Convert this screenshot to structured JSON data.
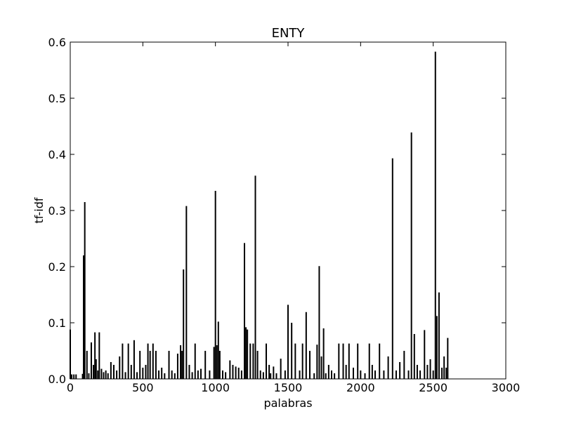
{
  "chart_data": {
    "type": "bar",
    "title": "ENTY",
    "xlabel": "palabras",
    "ylabel": "tf-idf",
    "xlim": [
      0,
      3000
    ],
    "ylim": [
      0.0,
      0.6
    ],
    "xticks": [
      "0",
      "500",
      "1000",
      "1500",
      "2000",
      "2500",
      "3000"
    ],
    "yticks": [
      "0.0",
      "0.1",
      "0.2",
      "0.3",
      "0.4",
      "0.5",
      "0.6"
    ],
    "grid": false,
    "bar_color": "#000000",
    "x": [
      0,
      10,
      25,
      40,
      85,
      92,
      100,
      115,
      128,
      145,
      160,
      170,
      178,
      190,
      200,
      215,
      230,
      245,
      260,
      280,
      300,
      320,
      340,
      360,
      380,
      400,
      420,
      440,
      460,
      480,
      500,
      520,
      535,
      550,
      570,
      590,
      610,
      630,
      650,
      680,
      700,
      720,
      740,
      760,
      770,
      780,
      800,
      820,
      840,
      860,
      880,
      900,
      930,
      960,
      990,
      1000,
      1010,
      1020,
      1030,
      1050,
      1070,
      1100,
      1120,
      1140,
      1160,
      1180,
      1200,
      1210,
      1220,
      1240,
      1260,
      1275,
      1290,
      1310,
      1330,
      1350,
      1370,
      1380,
      1400,
      1420,
      1450,
      1480,
      1500,
      1525,
      1550,
      1580,
      1600,
      1625,
      1650,
      1680,
      1700,
      1715,
      1730,
      1745,
      1760,
      1780,
      1800,
      1820,
      1850,
      1880,
      1900,
      1920,
      1950,
      1980,
      2000,
      2030,
      2060,
      2080,
      2100,
      2130,
      2160,
      2190,
      2220,
      2245,
      2270,
      2300,
      2330,
      2350,
      2370,
      2390,
      2410,
      2440,
      2460,
      2480,
      2500,
      2515,
      2525,
      2540,
      2560,
      2575,
      2590,
      2600
    ],
    "values": [
      0.088,
      0.008,
      0.008,
      0.008,
      0.009,
      0.22,
      0.315,
      0.05,
      0.01,
      0.065,
      0.025,
      0.083,
      0.035,
      0.015,
      0.083,
      0.018,
      0.012,
      0.015,
      0.01,
      0.03,
      0.025,
      0.015,
      0.04,
      0.063,
      0.012,
      0.063,
      0.025,
      0.069,
      0.012,
      0.05,
      0.02,
      0.025,
      0.063,
      0.05,
      0.063,
      0.05,
      0.015,
      0.02,
      0.01,
      0.05,
      0.015,
      0.01,
      0.045,
      0.06,
      0.05,
      0.195,
      0.308,
      0.025,
      0.012,
      0.063,
      0.015,
      0.018,
      0.05,
      0.015,
      0.057,
      0.335,
      0.06,
      0.102,
      0.05,
      0.015,
      0.012,
      0.033,
      0.025,
      0.022,
      0.02,
      0.015,
      0.242,
      0.092,
      0.088,
      0.063,
      0.063,
      0.362,
      0.05,
      0.015,
      0.012,
      0.063,
      0.025,
      0.01,
      0.022,
      0.01,
      0.036,
      0.015,
      0.132,
      0.1,
      0.063,
      0.015,
      0.063,
      0.119,
      0.05,
      0.01,
      0.061,
      0.201,
      0.04,
      0.09,
      0.01,
      0.025,
      0.015,
      0.01,
      0.063,
      0.063,
      0.025,
      0.063,
      0.02,
      0.063,
      0.015,
      0.01,
      0.063,
      0.025,
      0.015,
      0.063,
      0.015,
      0.04,
      0.393,
      0.015,
      0.03,
      0.05,
      0.015,
      0.439,
      0.08,
      0.025,
      0.015,
      0.087,
      0.025,
      0.035,
      0.015,
      0.583,
      0.112,
      0.154,
      0.02,
      0.04,
      0.02,
      0.073
    ]
  }
}
